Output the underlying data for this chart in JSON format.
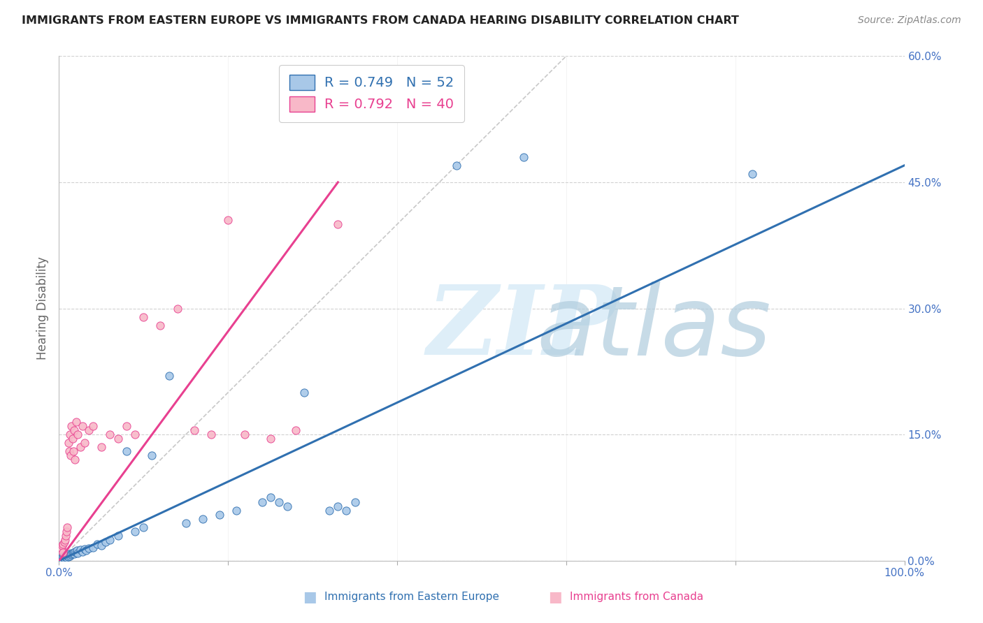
{
  "title": "IMMIGRANTS FROM EASTERN EUROPE VS IMMIGRANTS FROM CANADA HEARING DISABILITY CORRELATION CHART",
  "source": "Source: ZipAtlas.com",
  "ylabel": "Hearing Disability",
  "xlabel_blue": "Immigrants from Eastern Europe",
  "xlabel_pink": "Immigrants from Canada",
  "xlim": [
    0.0,
    100.0
  ],
  "ylim": [
    0.0,
    60.0
  ],
  "yticks": [
    0,
    15,
    30,
    45,
    60
  ],
  "xticks": [
    0,
    20,
    40,
    60,
    80,
    100
  ],
  "blue_R": 0.749,
  "blue_N": 52,
  "pink_R": 0.792,
  "pink_N": 40,
  "blue_dot_color": "#a8c8e8",
  "pink_dot_color": "#f8b8c8",
  "blue_line_color": "#3070b0",
  "pink_line_color": "#e84090",
  "grid_color": "#cccccc",
  "title_color": "#222222",
  "axis_tick_color": "#4472c4",
  "blue_scatter_x": [
    0.3,
    0.4,
    0.5,
    0.6,
    0.7,
    0.8,
    0.9,
    1.0,
    1.1,
    1.2,
    1.3,
    1.4,
    1.5,
    1.6,
    1.7,
    1.8,
    1.9,
    2.0,
    2.1,
    2.2,
    2.5,
    2.8,
    3.0,
    3.2,
    3.5,
    4.0,
    4.5,
    5.0,
    5.5,
    6.0,
    7.0,
    8.0,
    9.0,
    10.0,
    11.0,
    13.0,
    15.0,
    17.0,
    19.0,
    21.0,
    24.0,
    25.0,
    26.0,
    27.0,
    29.0,
    32.0,
    33.0,
    34.0,
    35.0,
    47.0,
    55.0,
    82.0
  ],
  "blue_scatter_y": [
    0.3,
    0.5,
    0.4,
    0.6,
    0.5,
    0.7,
    0.4,
    0.6,
    0.5,
    0.8,
    0.6,
    0.7,
    0.8,
    0.9,
    1.0,
    0.8,
    1.1,
    1.0,
    1.2,
    0.9,
    1.3,
    1.1,
    1.4,
    1.2,
    1.5,
    1.6,
    2.0,
    1.8,
    2.2,
    2.5,
    3.0,
    13.0,
    3.5,
    4.0,
    12.5,
    22.0,
    4.5,
    5.0,
    5.5,
    6.0,
    7.0,
    7.5,
    7.0,
    6.5,
    20.0,
    6.0,
    6.5,
    6.0,
    7.0,
    47.0,
    48.0,
    46.0
  ],
  "pink_scatter_x": [
    0.3,
    0.4,
    0.5,
    0.6,
    0.7,
    0.8,
    0.9,
    1.0,
    1.1,
    1.2,
    1.3,
    1.4,
    1.5,
    1.6,
    1.7,
    1.8,
    1.9,
    2.0,
    2.2,
    2.5,
    2.8,
    3.0,
    3.5,
    4.0,
    5.0,
    6.0,
    7.0,
    8.0,
    9.0,
    10.0,
    12.0,
    14.0,
    16.0,
    18.0,
    20.0,
    22.0,
    25.0,
    28.0,
    33.0,
    0.5
  ],
  "pink_scatter_y": [
    1.5,
    1.8,
    2.0,
    2.2,
    2.5,
    3.0,
    3.5,
    4.0,
    14.0,
    13.0,
    15.0,
    12.5,
    16.0,
    14.5,
    13.0,
    15.5,
    12.0,
    16.5,
    15.0,
    13.5,
    16.0,
    14.0,
    15.5,
    16.0,
    13.5,
    15.0,
    14.5,
    16.0,
    15.0,
    29.0,
    28.0,
    30.0,
    15.5,
    15.0,
    40.5,
    15.0,
    14.5,
    15.5,
    40.0,
    1.0
  ],
  "blue_regr_x0": 0.0,
  "blue_regr_x1": 100.0,
  "blue_regr_y0": 0.0,
  "blue_regr_y1": 47.0,
  "pink_regr_x0": 0.0,
  "pink_regr_x1": 33.0,
  "pink_regr_y0": 0.0,
  "pink_regr_y1": 45.0,
  "diag_x0": 0.0,
  "diag_x1": 60.0,
  "diag_y0": 0.0,
  "diag_y1": 60.0
}
